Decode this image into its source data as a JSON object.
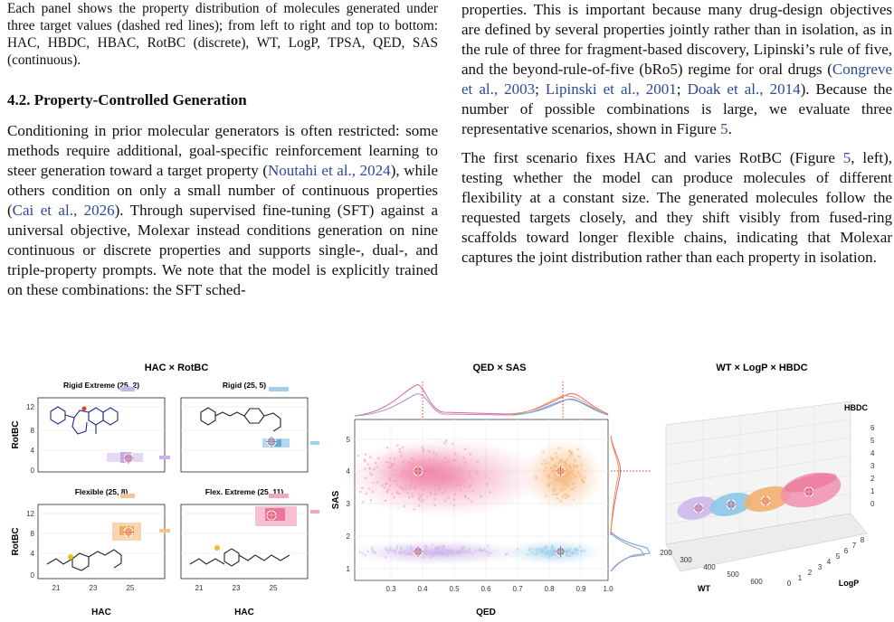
{
  "left_column": {
    "caption_text": "Each panel shows the property distribution of molecules generated under three target values (dashed red lines); from left to right and top to bottom: HAC, HBDC, HBAC, RotBC (discrete), WT, LogP, TPSA, QED, SAS (continuous).",
    "section_heading": "4.2. Property-Controlled Generation",
    "para_a": "Conditioning in prior molecular generators is often restricted: some methods require additional, goal-specific reinforcement learning to steer generation toward a target property (",
    "cite_a": "Noutahi et al., 2024",
    "para_b": "), while others condition on only a small number of continuous properties (",
    "cite_b": "Cai et al., 2026",
    "para_c": "). Through supervised fine-tuning (SFT) against a universal objective, Molexar instead conditions generation on nine continuous or discrete properties and supports single-, dual-, and triple-property prompts. We note that the model is explicitly trained on these combinations: the SFT sched-"
  },
  "right_column": {
    "p1_a": "properties. This is important because many drug-design objectives are defined by several properties jointly rather than in isolation, as in the rule of three for fragment-based discovery, Lipinski’s rule of five, and the beyond-rule-of-five (bRo5) regime for oral drugs (",
    "cite1": "Congreve et al., 2003",
    "sep1": "; ",
    "cite2": "Lipinski et al., 2001",
    "sep2": "; ",
    "cite3": "Doak et al., 2014",
    "p1_b": "). Because the number of possible combinations is large, we evaluate three representative scenarios, shown in Figure ",
    "fig_ref1": "5",
    "p1_c": ".",
    "p2_a": "The first scenario fixes HAC and varies RotBC (Figure ",
    "fig_ref2": "5",
    "p2_b": ", left), testing whether the model can produce molecules of different flexibility at a constant size. The generated molecules follow the requested targets closely, and they shift visibly from fused-ring scaffolds toward longer flexible chains, indicating that Molexar captures the joint distribution rather than each property in isolation."
  },
  "figure": {
    "panel_left": {
      "title": "HAC × RotBC",
      "subpanels": [
        {
          "title": "Rigid Extreme (25, 2)",
          "target": [
            25,
            2
          ],
          "color": "#a98fd6"
        },
        {
          "title": "Rigid (25, 5)",
          "target": [
            25,
            5
          ],
          "color": "#5aa9d9"
        },
        {
          "title": "Flexible (25, 8)",
          "target": [
            25,
            8
          ],
          "color": "#f0a04a"
        },
        {
          "title": "Flex. Extreme (25, 11)",
          "target": [
            25,
            11
          ],
          "color": "#e8608a"
        }
      ],
      "xlabel": "HAC",
      "ylabel": "RotBC",
      "xticks": [
        "21",
        "23",
        "25"
      ],
      "yticks": [
        "0",
        "4",
        "8",
        "12"
      ]
    },
    "panel_middle": {
      "title": "QED × SAS",
      "xlabel": "QED",
      "ylabel": "SAS",
      "xticks": [
        "0.3",
        "0.4",
        "0.5",
        "0.6",
        "0.7",
        "0.8",
        "0.9",
        "1.0"
      ],
      "yticks": [
        "1",
        "2",
        "3",
        "4",
        "5"
      ]
    },
    "panel_right": {
      "title": "WT × LogP × HBDC",
      "zlabel": "HBDC",
      "xlabel": "WT",
      "ylabel": "LogP",
      "zticks": [
        "0",
        "1",
        "2",
        "3",
        "4",
        "5",
        "6"
      ],
      "xticks": [
        "200",
        "300",
        "400",
        "500",
        "600"
      ],
      "yticks": [
        "0",
        "1",
        "2",
        "3",
        "4",
        "5",
        "6",
        "7",
        "8"
      ]
    }
  },
  "chart_data": [
    {
      "type": "scatter",
      "title": "QED × SAS",
      "xlabel": "QED",
      "ylabel": "SAS",
      "xlim": [
        0.2,
        1.0
      ],
      "ylim": [
        0.6,
        5.6
      ],
      "targets": [
        {
          "x": 0.4,
          "y": 4.0,
          "color": "#e8608a"
        },
        {
          "x": 0.85,
          "y": 4.0,
          "color": "#f0a04a"
        },
        {
          "x": 0.4,
          "y": 1.5,
          "color": "#a98fd6"
        },
        {
          "x": 0.85,
          "y": 1.5,
          "color": "#5aa9d9"
        }
      ]
    },
    {
      "type": "scatter",
      "title": "HAC × RotBC",
      "xlabel": "HAC",
      "ylabel": "RotBC",
      "xlim": [
        20,
        27
      ],
      "ylim": [
        -0.5,
        13
      ],
      "targets": [
        {
          "x": 25,
          "y": 2
        },
        {
          "x": 25,
          "y": 5
        },
        {
          "x": 25,
          "y": 8
        },
        {
          "x": 25,
          "y": 11
        }
      ]
    }
  ]
}
